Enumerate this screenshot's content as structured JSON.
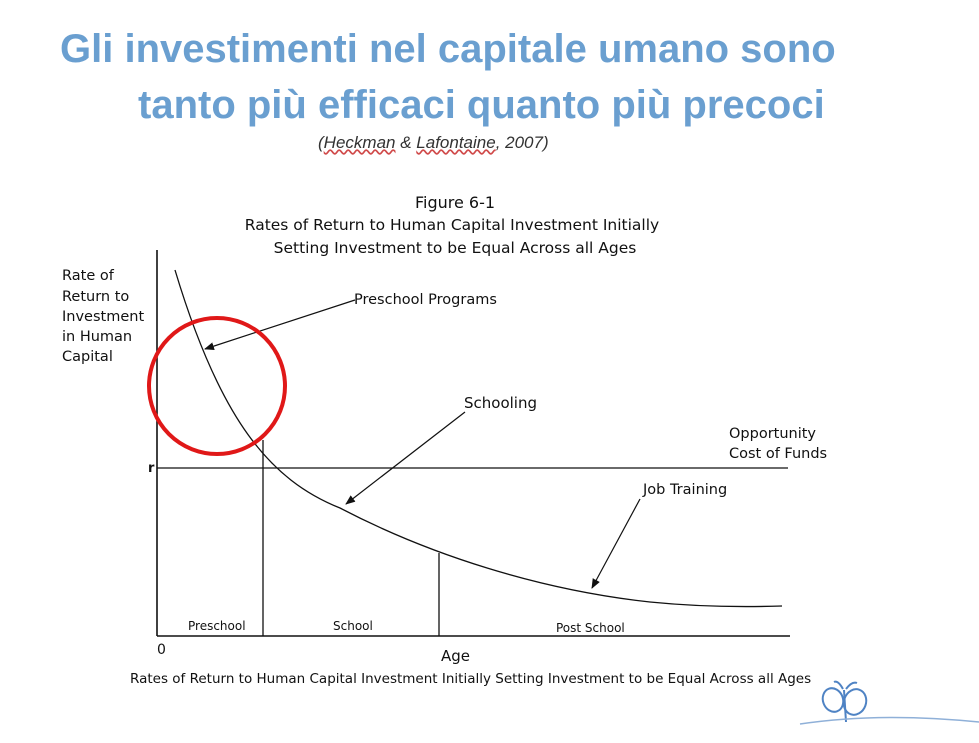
{
  "slide": {
    "title_line1": "Gli investimenti nel capitale umano sono",
    "title_line2": "tanto più efficaci quanto più precoci",
    "citation_open": "(",
    "citation_author1": "Heckman",
    "citation_amp": " & ",
    "citation_author2": "Lafontaine",
    "citation_rest": ", 2007)",
    "title_color": "#6a9fd0",
    "highlight_color": "#e01818"
  },
  "figure": {
    "number": "Figure 6-1",
    "title_line1": "Rates of Return to Human Capital Investment Initially",
    "title_line2": "Setting Investment to be Equal Across all Ages",
    "ylabel_lines": [
      "Rate of",
      "Return to",
      "Investment",
      "in Human",
      "Capital"
    ],
    "r_label": "r",
    "origin_label": "0",
    "xlabel": "Age",
    "labels": {
      "preschool_programs": "Preschool Programs",
      "schooling": "Schooling",
      "job_training": "Job Training",
      "opportunity_line1": "Opportunity",
      "opportunity_line2": "Cost of Funds"
    },
    "stages": [
      "Preschool",
      "School",
      "Post School"
    ],
    "caption": "Rates of Return to Human Capital Investment Initially Setting Investment to be Equal Across all Ages"
  }
}
